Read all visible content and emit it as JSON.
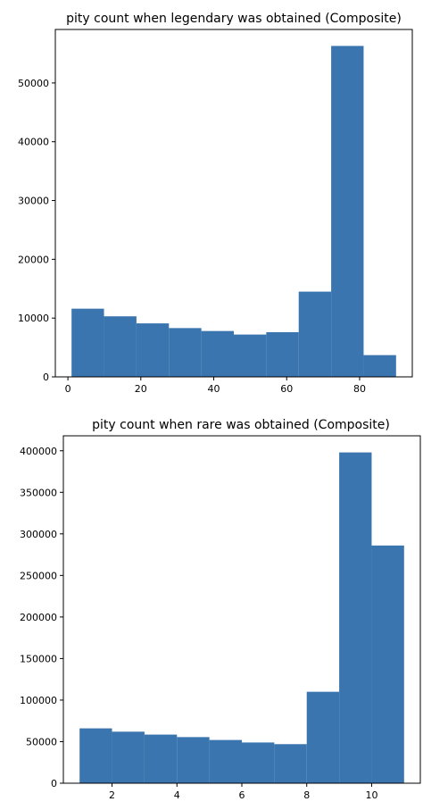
{
  "chart_data": [
    {
      "type": "bar",
      "title": "pity count when legendary was obtained (Composite)",
      "xlabel": "",
      "ylabel": "",
      "bar_color": "#3a75af",
      "bins": [
        {
          "start": 1,
          "end": 9.9,
          "value": 11600
        },
        {
          "start": 9.9,
          "end": 18.8,
          "value": 10300
        },
        {
          "start": 18.8,
          "end": 27.7,
          "value": 9100
        },
        {
          "start": 27.7,
          "end": 36.6,
          "value": 8300
        },
        {
          "start": 36.6,
          "end": 45.5,
          "value": 7800
        },
        {
          "start": 45.5,
          "end": 54.4,
          "value": 7200
        },
        {
          "start": 54.4,
          "end": 63.3,
          "value": 7600
        },
        {
          "start": 63.3,
          "end": 72.2,
          "value": 14500
        },
        {
          "start": 72.2,
          "end": 81.1,
          "value": 56300
        },
        {
          "start": 81.1,
          "end": 90,
          "value": 3700
        }
      ],
      "xlim": [
        -3.45,
        94.45
      ],
      "ylim": [
        0,
        59100
      ],
      "xticks": [
        0,
        20,
        40,
        60,
        80
      ],
      "xtick_labels": [
        "0",
        "20",
        "40",
        "60",
        "80"
      ],
      "yticks": [
        0,
        10000,
        20000,
        30000,
        40000,
        50000
      ],
      "ytick_labels": [
        "0",
        "10000",
        "20000",
        "30000",
        "40000",
        "50000"
      ],
      "grid": false,
      "legend": "none"
    },
    {
      "type": "bar",
      "title": "pity count when rare was obtained (Composite)",
      "xlabel": "",
      "ylabel": "",
      "bar_color": "#3a75af",
      "bins": [
        {
          "start": 1,
          "end": 2,
          "value": 66000
        },
        {
          "start": 2,
          "end": 3,
          "value": 62000
        },
        {
          "start": 3,
          "end": 4,
          "value": 58500
        },
        {
          "start": 4,
          "end": 5,
          "value": 55500
        },
        {
          "start": 5,
          "end": 6,
          "value": 52000
        },
        {
          "start": 6,
          "end": 7,
          "value": 49000
        },
        {
          "start": 7,
          "end": 8,
          "value": 47000
        },
        {
          "start": 8,
          "end": 9,
          "value": 110000
        },
        {
          "start": 9,
          "end": 10,
          "value": 398000
        },
        {
          "start": 10,
          "end": 11,
          "value": 286000
        }
      ],
      "xlim": [
        0.5,
        11.5
      ],
      "ylim": [
        0,
        418000
      ],
      "xticks": [
        2,
        4,
        6,
        8,
        10
      ],
      "xtick_labels": [
        "2",
        "4",
        "6",
        "8",
        "10"
      ],
      "yticks": [
        0,
        50000,
        100000,
        150000,
        200000,
        250000,
        300000,
        350000,
        400000
      ],
      "ytick_labels": [
        "0",
        "50000",
        "100000",
        "150000",
        "200000",
        "250000",
        "300000",
        "350000",
        "400000"
      ],
      "grid": false,
      "legend": "none"
    }
  ]
}
